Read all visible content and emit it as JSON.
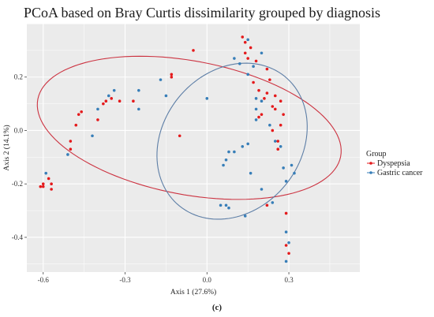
{
  "chart_data": {
    "type": "scatter",
    "title": "PCoA based on Bray Curtis dissimilarity grouped by diagnosis",
    "xlabel": "Axis 1 (27.6%)",
    "ylabel": "Axis 2 (14.1%)",
    "xlim": [
      -0.66,
      0.56
    ],
    "ylim": [
      -0.53,
      0.4
    ],
    "xticks": [
      -0.6,
      -0.3,
      0.0,
      0.3
    ],
    "xtick_labels": [
      "-0.6",
      "-0.3",
      "0.0",
      "0.3"
    ],
    "yticks": [
      -0.4,
      -0.2,
      0.0,
      0.2
    ],
    "ytick_labels": [
      "-0.4",
      "-0.2",
      "0.0",
      "0.2"
    ],
    "grid": true,
    "background": "#ebebeb",
    "legend": {
      "title": "Group",
      "placement": "right",
      "entries": [
        "Dyspepsia",
        "Gastric cancer"
      ]
    },
    "series": [
      {
        "name": "Dyspepsia",
        "color": "#e41a1c",
        "points": [
          [
            -0.61,
            -0.21
          ],
          [
            -0.6,
            -0.21
          ],
          [
            -0.6,
            -0.2
          ],
          [
            -0.58,
            -0.18
          ],
          [
            -0.57,
            -0.2
          ],
          [
            -0.57,
            -0.22
          ],
          [
            -0.5,
            -0.07
          ],
          [
            -0.5,
            -0.04
          ],
          [
            -0.48,
            0.02
          ],
          [
            -0.47,
            0.06
          ],
          [
            -0.46,
            0.07
          ],
          [
            -0.4,
            0.04
          ],
          [
            -0.38,
            0.1
          ],
          [
            -0.37,
            0.11
          ],
          [
            -0.35,
            0.12
          ],
          [
            -0.32,
            0.11
          ],
          [
            -0.27,
            0.11
          ],
          [
            -0.13,
            0.2
          ],
          [
            -0.13,
            0.21
          ],
          [
            -0.1,
            -0.02
          ],
          [
            -0.05,
            0.3
          ],
          [
            0.13,
            0.35
          ],
          [
            0.14,
            0.33
          ],
          [
            0.14,
            0.29
          ],
          [
            0.15,
            0.27
          ],
          [
            0.16,
            0.31
          ],
          [
            0.17,
            0.18
          ],
          [
            0.18,
            0.26
          ],
          [
            0.19,
            0.15
          ],
          [
            0.19,
            0.05
          ],
          [
            0.2,
            0.06
          ],
          [
            0.21,
            0.12
          ],
          [
            0.22,
            0.23
          ],
          [
            0.22,
            0.14
          ],
          [
            0.23,
            0.19
          ],
          [
            0.24,
            0.09
          ],
          [
            0.24,
            0.0
          ],
          [
            0.25,
            0.13
          ],
          [
            0.25,
            0.08
          ],
          [
            0.26,
            -0.04
          ],
          [
            0.26,
            -0.07
          ],
          [
            0.27,
            0.02
          ],
          [
            0.27,
            0.11
          ],
          [
            0.28,
            0.06
          ],
          [
            0.29,
            -0.31
          ],
          [
            0.29,
            -0.43
          ],
          [
            0.3,
            -0.46
          ],
          [
            0.22,
            -0.28
          ]
        ]
      },
      {
        "name": "Gastric cancer",
        "color": "#377eb8",
        "points": [
          [
            -0.59,
            -0.16
          ],
          [
            -0.51,
            -0.09
          ],
          [
            -0.42,
            -0.02
          ],
          [
            -0.4,
            0.08
          ],
          [
            -0.36,
            0.13
          ],
          [
            -0.34,
            0.15
          ],
          [
            -0.25,
            0.15
          ],
          [
            -0.25,
            0.08
          ],
          [
            -0.17,
            0.19
          ],
          [
            -0.15,
            0.13
          ],
          [
            0.0,
            0.12
          ],
          [
            0.05,
            -0.28
          ],
          [
            0.07,
            -0.28
          ],
          [
            0.08,
            -0.29
          ],
          [
            0.06,
            -0.13
          ],
          [
            0.07,
            -0.11
          ],
          [
            0.08,
            -0.08
          ],
          [
            0.1,
            0.27
          ],
          [
            0.1,
            -0.08
          ],
          [
            0.12,
            0.25
          ],
          [
            0.13,
            -0.06
          ],
          [
            0.14,
            -0.32
          ],
          [
            0.15,
            0.21
          ],
          [
            0.15,
            0.34
          ],
          [
            0.15,
            -0.05
          ],
          [
            0.16,
            -0.16
          ],
          [
            0.17,
            0.24
          ],
          [
            0.18,
            0.12
          ],
          [
            0.18,
            0.04
          ],
          [
            0.18,
            0.08
          ],
          [
            0.2,
            -0.22
          ],
          [
            0.2,
            0.11
          ],
          [
            0.2,
            0.29
          ],
          [
            0.23,
            0.02
          ],
          [
            0.24,
            -0.27
          ],
          [
            0.25,
            -0.04
          ],
          [
            0.27,
            -0.06
          ],
          [
            0.28,
            -0.14
          ],
          [
            0.29,
            -0.19
          ],
          [
            0.29,
            -0.38
          ],
          [
            0.29,
            -0.49
          ],
          [
            0.3,
            -0.42
          ],
          [
            0.31,
            -0.13
          ],
          [
            0.32,
            -0.16
          ]
        ]
      }
    ],
    "ellipses": [
      {
        "series": "Dyspepsia",
        "color": "#cc3341",
        "cx": -0.065,
        "cy": 0.01,
        "rx": 0.565,
        "ry": 0.25,
        "angle_deg": -11
      },
      {
        "series": "Gastric cancer",
        "color": "#5d7ea6",
        "cx": 0.092,
        "cy": -0.04,
        "rx": 0.31,
        "ry": 0.255,
        "angle_deg": 54
      }
    ]
  },
  "caption": "(c)"
}
